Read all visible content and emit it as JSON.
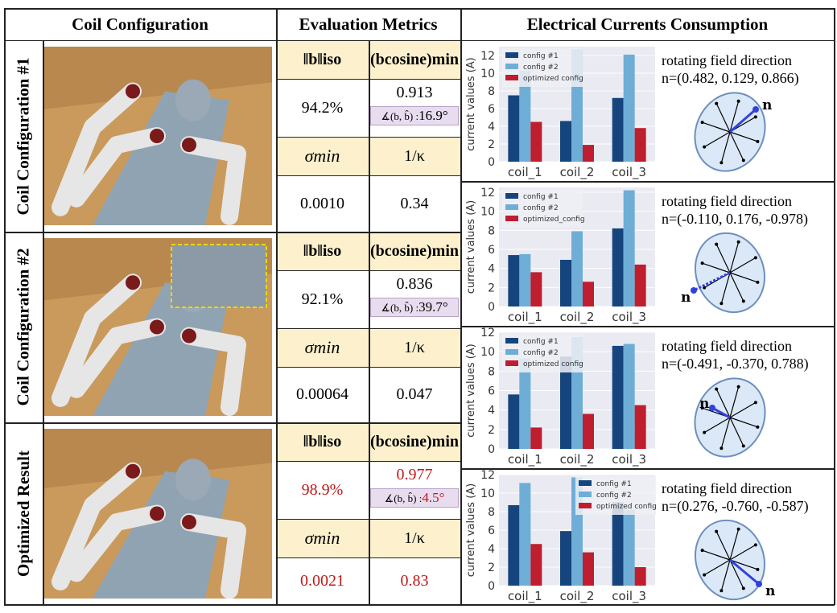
{
  "headers": {
    "coil": "Coil Configuration",
    "metrics": "Evaluation Metrics",
    "currents": "Electrical Currents Consumption"
  },
  "rows": [
    {
      "label": "Coil Configuration #1",
      "norm_header": "‖b‖iso",
      "cos_header": "(bcosine)min",
      "norm": "94.2%",
      "cosine": "0.913",
      "angle_label": "∡(b, b̂) :",
      "angle": "16.9°",
      "sigma_header": "σmin",
      "kappa_header": "1/κ",
      "sigma": "0.0010",
      "kappa": "0.34",
      "highlight": false
    },
    {
      "label": "Coil Configuration #2",
      "norm_header": "‖b‖iso",
      "cos_header": "(bcosine)min",
      "norm": "92.1%",
      "cosine": "0.836",
      "angle_label": "∡(b, b̂) :",
      "angle": "39.7°",
      "sigma_header": "σmin",
      "kappa_header": "1/κ",
      "sigma": "0.00064",
      "kappa": "0.047",
      "highlight": false
    },
    {
      "label": "Optimized Result",
      "norm_header": "‖b‖iso",
      "cos_header": "(bcosine)min",
      "norm": "98.9%",
      "cosine": "0.977",
      "angle_label": "∡(b, b̂) :",
      "angle": "4.5°",
      "sigma_header": "σmin",
      "kappa_header": "1/κ",
      "sigma": "0.0021",
      "kappa": "0.83",
      "highlight": true
    }
  ],
  "directions": [
    {
      "title": "rotating field direction",
      "n": "n=(0.482, 0.129, 0.866)",
      "n_label": "n"
    },
    {
      "title": "rotating field direction",
      "n": "n=(-0.110, 0.176, -0.978)",
      "n_label": "n"
    },
    {
      "title": "rotating field direction",
      "n": "n=(-0.491, -0.370, 0.788)",
      "n_label": "n"
    },
    {
      "title": "rotating field direction",
      "n": "n=(0.276, -0.760, -0.587)",
      "n_label": "n"
    }
  ],
  "colors": {
    "config1": "#16457e",
    "config2": "#6eaed6",
    "optimized": "#be1e2d",
    "highlight_text": "#c21818",
    "header_fill": "#fdf0cc",
    "angle_fill": "#e8dcef",
    "n_arrow": "#3340e0",
    "ellipse_fill": "#dbe8f7"
  },
  "chart_data": [
    {
      "type": "bar",
      "categories": [
        "coil_1",
        "coil_2",
        "coil_3"
      ],
      "ylabel": "current values (A)",
      "ylim": [
        0,
        13
      ],
      "yticks": [
        0,
        2,
        4,
        6,
        8,
        10,
        12
      ],
      "legend": "top-left",
      "grid": true,
      "series": [
        {
          "name": "config #1",
          "values": [
            7.5,
            4.6,
            7.2
          ]
        },
        {
          "name": "config #2",
          "values": [
            10.3,
            12.7,
            12.1
          ]
        },
        {
          "name": "optimized config",
          "values": [
            4.5,
            1.9,
            3.8
          ]
        }
      ]
    },
    {
      "type": "bar",
      "categories": [
        "coil_1",
        "coil_2",
        "coil_3"
      ],
      "ylabel": "current values (A)",
      "ylim": [
        0,
        12.5
      ],
      "yticks": [
        0,
        2,
        4,
        6,
        8,
        10,
        12
      ],
      "legend": "top-left",
      "grid": true,
      "series": [
        {
          "name": "config #1",
          "values": [
            5.4,
            4.9,
            8.2
          ]
        },
        {
          "name": "config #2",
          "values": [
            5.5,
            7.9,
            12.2
          ]
        },
        {
          "name": "optimized_config",
          "values": [
            3.6,
            2.6,
            4.4
          ]
        }
      ]
    },
    {
      "type": "bar",
      "categories": [
        "coil_1",
        "coil_2",
        "coil_3"
      ],
      "ylabel": "current values (A)",
      "ylim": [
        0,
        12
      ],
      "yticks": [
        0,
        2,
        4,
        6,
        8,
        10,
        12
      ],
      "legend": "top-left",
      "grid": true,
      "series": [
        {
          "name": "config #1",
          "values": [
            5.6,
            9.5,
            10.6
          ]
        },
        {
          "name": "config #2",
          "values": [
            9.3,
            11.5,
            10.8
          ]
        },
        {
          "name": "optimized config",
          "values": [
            2.2,
            3.6,
            4.5
          ]
        }
      ]
    },
    {
      "type": "bar",
      "categories": [
        "coil_1",
        "coil_2",
        "coil_3"
      ],
      "ylabel": "current values (A)",
      "ylim": [
        0,
        12
      ],
      "yticks": [
        0,
        2,
        4,
        6,
        8,
        10,
        12
      ],
      "legend": "top-right",
      "grid": true,
      "series": [
        {
          "name": "config #1",
          "values": [
            8.7,
            5.9,
            9.0
          ]
        },
        {
          "name": "config #2",
          "values": [
            11.1,
            11.7,
            8.2
          ]
        },
        {
          "name": "optimized config",
          "values": [
            4.5,
            3.6,
            2.0
          ]
        }
      ]
    }
  ]
}
